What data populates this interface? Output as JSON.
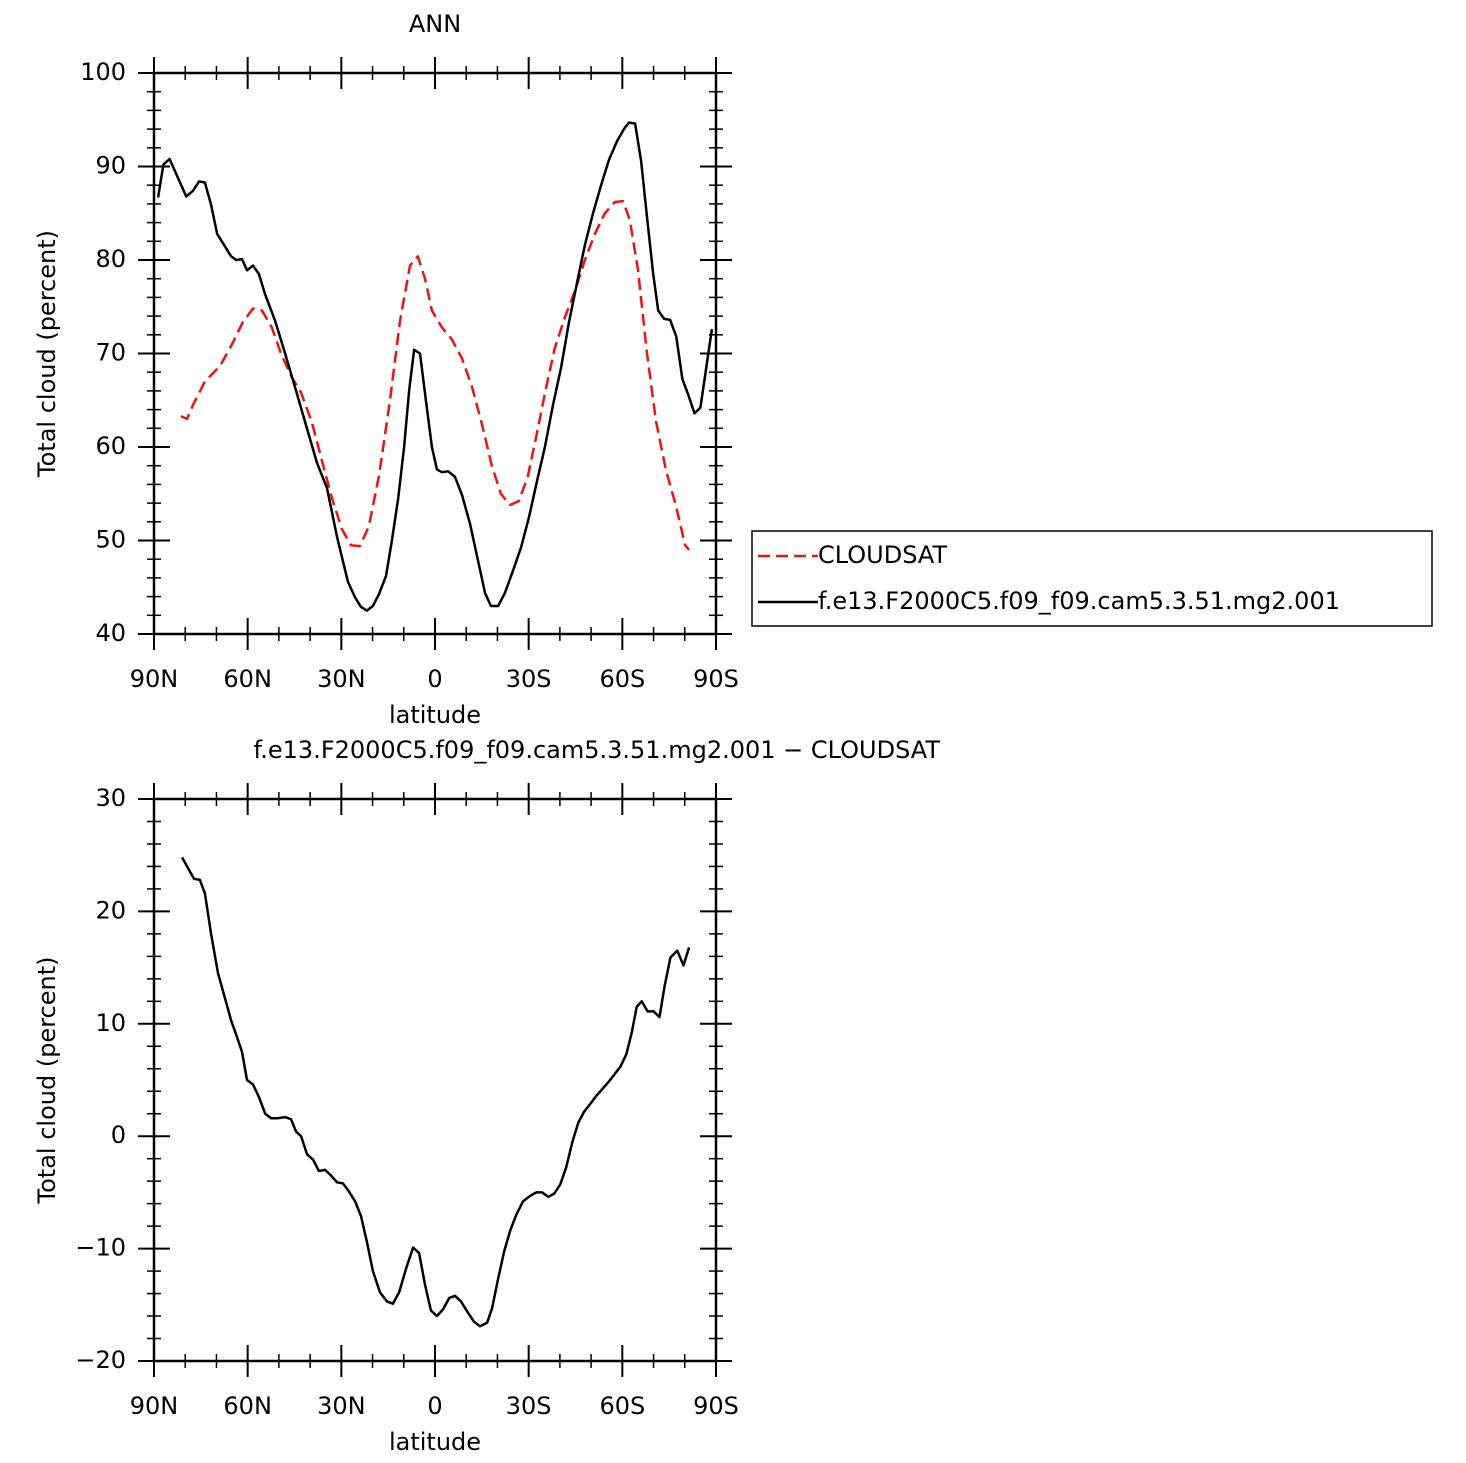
{
  "chart_data": [
    {
      "type": "line",
      "title": "ANN",
      "xlabel": "latitude",
      "ylabel": "Total cloud (percent)",
      "xlim": [
        90,
        -90
      ],
      "xticks": [
        {
          "value": 90,
          "label": "90N"
        },
        {
          "value": 60,
          "label": "60N"
        },
        {
          "value": 30,
          "label": "30N"
        },
        0,
        {
          "value": -30,
          "label": "30S"
        },
        {
          "value": -60,
          "label": "60S"
        },
        {
          "value": -90,
          "label": "90S"
        }
      ],
      "xminorticks": [
        80,
        70,
        50,
        40,
        20,
        10,
        -10,
        -20,
        -40,
        -50,
        -70,
        -80
      ],
      "ylim": [
        40,
        100
      ],
      "yticks": [
        40,
        50,
        60,
        70,
        80,
        90,
        100
      ],
      "yminorticks": [
        42,
        44,
        46,
        48,
        52,
        54,
        56,
        58,
        62,
        64,
        66,
        68,
        72,
        74,
        76,
        78,
        82,
        84,
        86,
        88,
        92,
        94,
        96,
        98
      ],
      "legend": "right",
      "series": [
        {
          "name": "CLOUDSAT",
          "color": "#e8141a",
          "dash": true,
          "x": [
            81.4,
            79.4,
            77.5,
            73.7,
            68.8,
            65,
            61.5,
            58.3,
            55.4,
            52.3,
            49.1,
            46.1,
            42.9,
            39.4,
            36.2,
            33,
            29.8,
            26.9,
            24.1,
            21.2,
            17.9,
            14.4,
            11.2,
            8,
            5.5,
            3.2,
            1,
            -2.2,
            -5.4,
            -8.6,
            -11.8,
            -15,
            -18.2,
            -21.1,
            -24,
            -26.8,
            -29.7,
            -32.6,
            -35.5,
            -38.3,
            -41.5,
            -44.7,
            -48,
            -51.2,
            -54.4,
            -57.6,
            -60.2,
            -62.4,
            -65,
            -67.9,
            -70.8,
            -74,
            -77.2,
            -80.1,
            -81.4
          ],
          "values": [
            63.3,
            63,
            64.5,
            67,
            68.7,
            71,
            73.4,
            74.8,
            74.6,
            72.8,
            69.8,
            67.6,
            65.8,
            62.6,
            58.5,
            54.5,
            51.2,
            49.5,
            49.4,
            51.5,
            57,
            65,
            73.5,
            79.4,
            80.4,
            78,
            74.6,
            72.8,
            71.5,
            69.5,
            66.5,
            62.5,
            58,
            55,
            53.8,
            54.2,
            56.8,
            61.4,
            66.2,
            70.5,
            73.8,
            76.6,
            80,
            82.8,
            85,
            86.2,
            86.3,
            84.3,
            79,
            70,
            62.7,
            57.5,
            53.7,
            49.5,
            49
          ]
        },
        {
          "name": "f.e13.F2000C5.f09_f09.cam5.3.51.mg2.001",
          "color": "#000000",
          "dash": false,
          "x": [
            88.7,
            87,
            85,
            79.7,
            77.5,
            75.6,
            73.7,
            71.7,
            69.8,
            65.3,
            63.7,
            61.8,
            60.2,
            58.3,
            56.4,
            54.4,
            51.2,
            48,
            44.5,
            41.3,
            37.8,
            34.6,
            31.4,
            27.9,
            25.6,
            23.7,
            21.8,
            19.9,
            17.9,
            15.7,
            13.8,
            11.8,
            9.9,
            8.3,
            6.7,
            4.8,
            2.9,
            1,
            -0.6,
            -2.2,
            -4.2,
            -6.4,
            -8.7,
            -11.2,
            -13.5,
            -16,
            -17.9,
            -20.2,
            -22.4,
            -25,
            -27.6,
            -30.1,
            -32.7,
            -35.2,
            -37.8,
            -40.4,
            -42.9,
            -45.5,
            -48,
            -50.6,
            -53.2,
            -55.7,
            -58.3,
            -60.5,
            -62.1,
            -64.1,
            -66,
            -67.9,
            -69.9,
            -71.5,
            -73.4,
            -75.3,
            -77.3,
            -79.2,
            -81.1,
            -83.1,
            -85,
            -88.7
          ],
          "values": [
            86.7,
            90.2,
            90.8,
            86.8,
            87.4,
            88.4,
            88.3,
            85.9,
            82.8,
            80.4,
            80,
            80.1,
            78.9,
            79.4,
            78.5,
            76.3,
            73.5,
            70,
            66,
            62.3,
            58.3,
            55.6,
            50.4,
            45.6,
            43.9,
            42.9,
            42.5,
            43,
            44.3,
            46.2,
            50,
            54.5,
            60,
            66,
            70.4,
            70,
            65,
            60,
            57.6,
            57.3,
            57.4,
            56.8,
            54.8,
            51.8,
            48.3,
            44.4,
            43,
            43,
            44.4,
            46.8,
            49.3,
            52.5,
            56.4,
            60,
            64.5,
            68.5,
            73.3,
            77.6,
            81.6,
            85,
            88,
            90.7,
            92.7,
            94,
            94.7,
            94.6,
            90.6,
            84.6,
            78.5,
            74.6,
            73.7,
            73.6,
            71.8,
            67.3,
            65.6,
            63.6,
            64.2,
            72.6
          ]
        }
      ]
    },
    {
      "type": "line",
      "title": "f.e13.F2000C5.f09_f09.cam5.3.51.mg2.001 − CLOUDSAT",
      "xlabel": "latitude",
      "ylabel": "Total cloud (percent)",
      "xlim": [
        90,
        -90
      ],
      "xticks": [
        {
          "value": 90,
          "label": "90N"
        },
        {
          "value": 60,
          "label": "60N"
        },
        {
          "value": 30,
          "label": "30N"
        },
        0,
        {
          "value": -30,
          "label": "30S"
        },
        {
          "value": -60,
          "label": "60S"
        },
        {
          "value": -90,
          "label": "90S"
        }
      ],
      "xminorticks": [
        80,
        70,
        50,
        40,
        20,
        10,
        -10,
        -20,
        -40,
        -50,
        -70,
        -80
      ],
      "ylim": [
        -20,
        30
      ],
      "yticks": [
        {
          "value": -20,
          "label": "−20"
        },
        {
          "value": -10,
          "label": "−10"
        },
        0,
        10,
        20,
        30
      ],
      "yminorticks": [
        -18,
        -16,
        -14,
        -12,
        -8,
        -6,
        -4,
        -2,
        2,
        4,
        6,
        8,
        12,
        14,
        16,
        18,
        22,
        24,
        26,
        28
      ],
      "series": [
        {
          "color": "#000000",
          "dash": false,
          "x": [
            81,
            79,
            77.2,
            75.3,
            73.7,
            71.7,
            69.5,
            67.3,
            65.3,
            63.4,
            61.8,
            60.2,
            58.3,
            56.4,
            54.4,
            52.5,
            50.3,
            48,
            46.1,
            44.5,
            42.9,
            41,
            39,
            37.2,
            35.2,
            33.3,
            31.4,
            29.5,
            27.6,
            25.6,
            23.7,
            21.8,
            19.9,
            17.6,
            15.4,
            13.5,
            11.5,
            9.3,
            7,
            5.1,
            3.2,
            1.3,
            -0.6,
            -2.6,
            -4.5,
            -6.4,
            -8.3,
            -10.3,
            -12.5,
            -14.4,
            -16.7,
            -18.3,
            -20.2,
            -22.1,
            -24.1,
            -26,
            -28.2,
            -30.5,
            -32.4,
            -34.3,
            -36.3,
            -38.2,
            -40.1,
            -42,
            -44,
            -45.9,
            -47.8,
            -49.8,
            -51.7,
            -53.6,
            -55.5,
            -57.5,
            -59.4,
            -61.3,
            -63,
            -64.6,
            -66.2,
            -68.1,
            -70,
            -71.9,
            -73.5,
            -75.4,
            -77.6,
            -79.6,
            -81.4
          ],
          "values": [
            24.8,
            23.8,
            22.9,
            22.8,
            21.6,
            18,
            14.5,
            12.3,
            10.3,
            8.8,
            7.5,
            5,
            4.6,
            3.5,
            2,
            1.6,
            1.6,
            1.7,
            1.5,
            0.4,
            0,
            -1.6,
            -2.1,
            -3.1,
            -3,
            -3.5,
            -4.1,
            -4.2,
            -4.9,
            -5.8,
            -7.1,
            -9.4,
            -12,
            -13.9,
            -14.7,
            -14.9,
            -13.9,
            -11.8,
            -9.9,
            -10.4,
            -13.2,
            -15.5,
            -16,
            -15.4,
            -14.4,
            -14.2,
            -14.7,
            -15.6,
            -16.5,
            -16.9,
            -16.6,
            -15.3,
            -12.7,
            -10.3,
            -8.4,
            -7,
            -5.8,
            -5.3,
            -5,
            -5,
            -5.4,
            -5.1,
            -4.3,
            -2.8,
            -0.5,
            1.2,
            2.2,
            2.9,
            3.6,
            4.2,
            4.8,
            5.5,
            6.2,
            7.3,
            9.2,
            11.5,
            12,
            11.1,
            11.1,
            10.6,
            13.3,
            15.9,
            16.5,
            15.2,
            16.8
          ]
        }
      ]
    }
  ]
}
